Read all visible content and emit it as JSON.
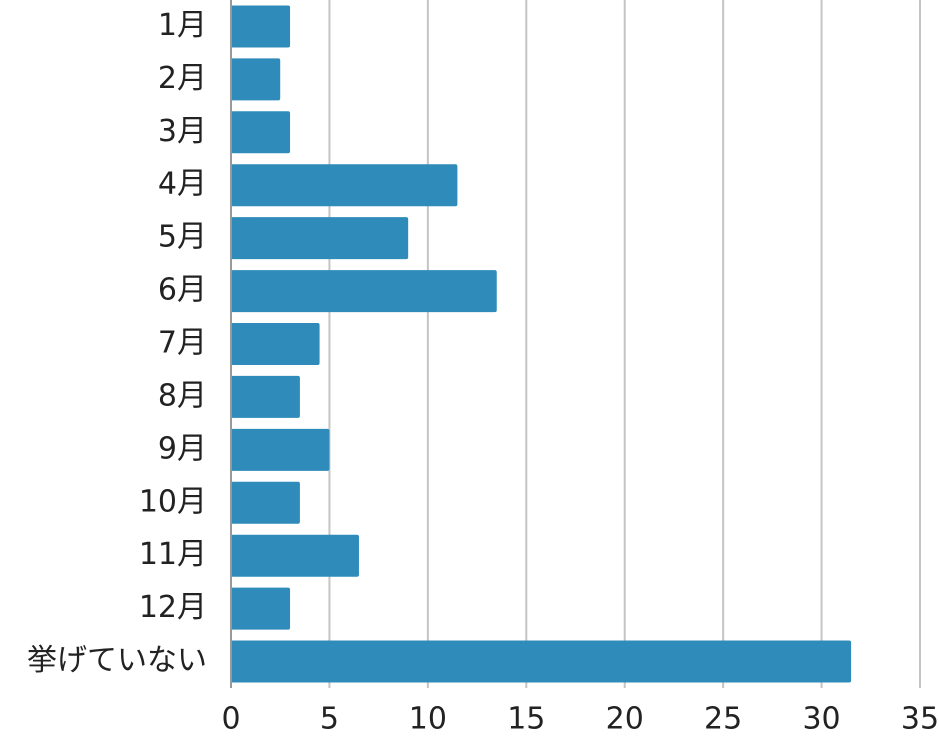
{
  "chart_data": {
    "type": "bar",
    "orientation": "horizontal",
    "categories": [
      "1月",
      "2月",
      "3月",
      "4月",
      "5月",
      "6月",
      "7月",
      "8月",
      "9月",
      "10月",
      "11月",
      "12月",
      "挙げていない"
    ],
    "values": [
      3,
      2.5,
      3,
      11.5,
      9,
      13.5,
      4.5,
      3.5,
      5,
      3.5,
      6.5,
      3,
      31.5
    ],
    "color": "#2e8bba",
    "xlim": [
      0,
      35
    ],
    "xticks": [
      0,
      5,
      10,
      15,
      20,
      25,
      30,
      35
    ],
    "grid": true
  }
}
